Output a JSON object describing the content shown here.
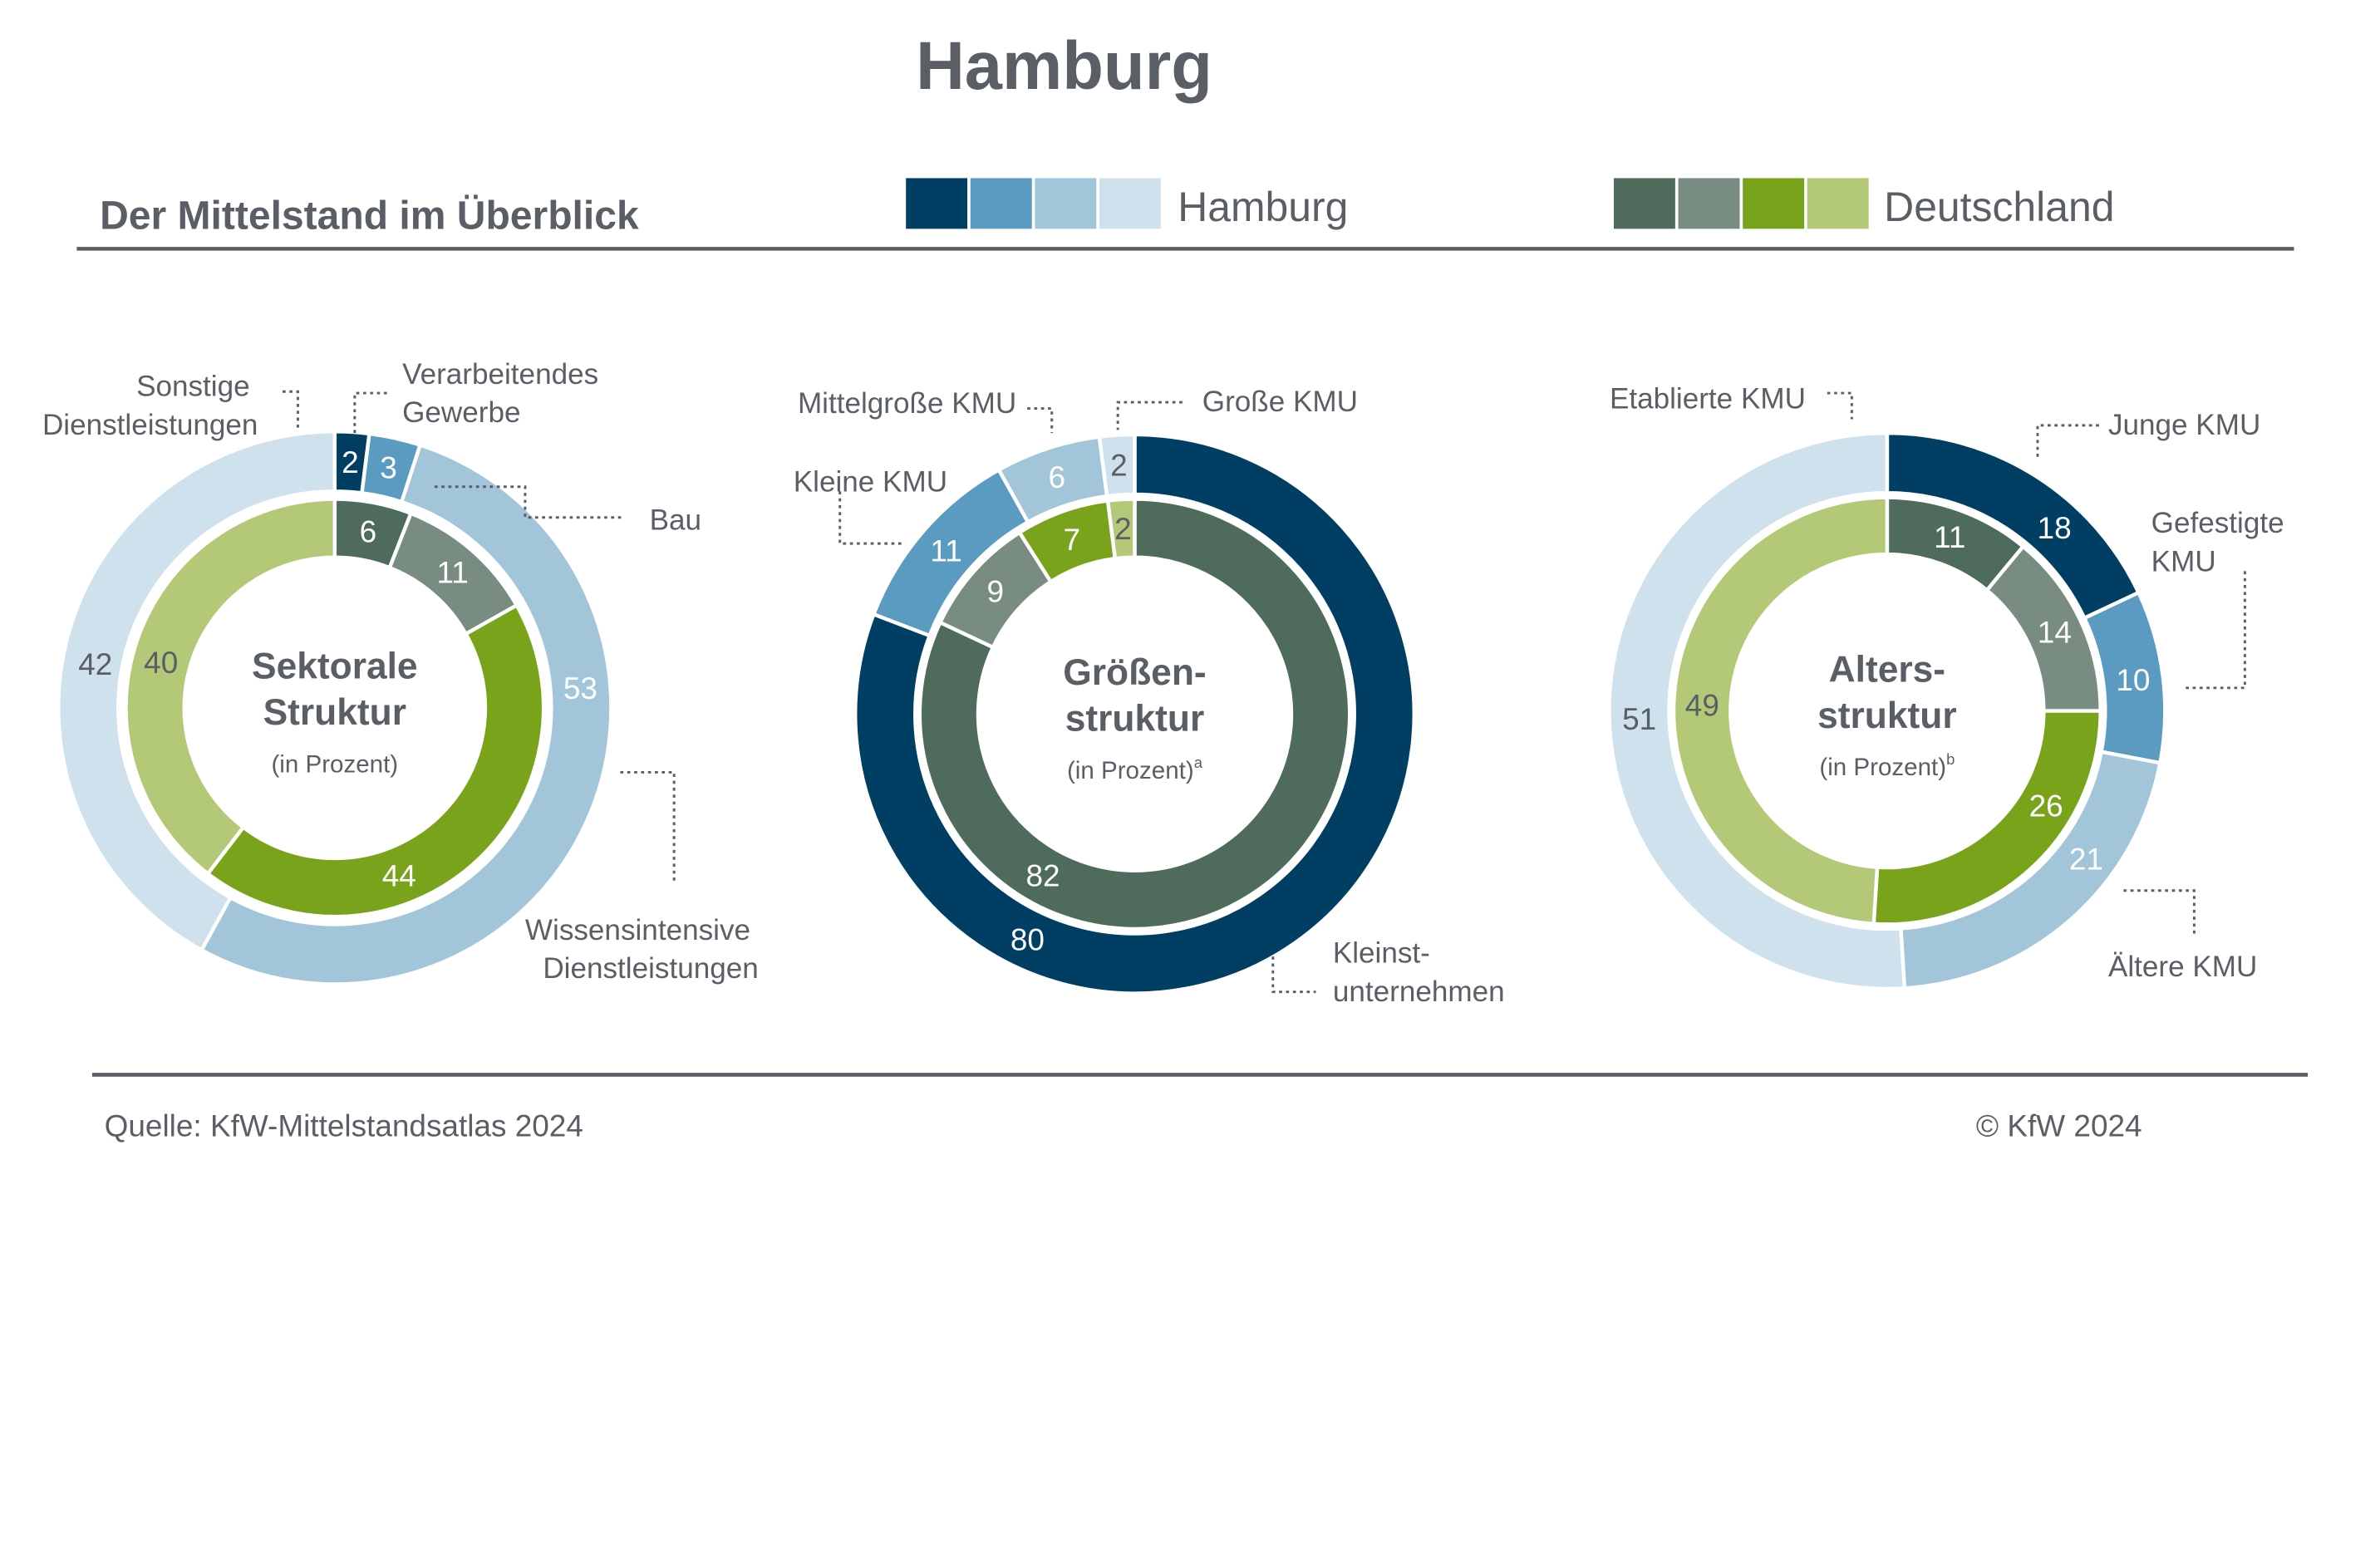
{
  "header": {
    "title": "Hamburg",
    "subtitle": "Der Mittelstand im Überblick"
  },
  "legend": {
    "hamburg_label": "Hamburg",
    "deutschland_label": "Deutschland",
    "hamburg_colors": [
      "#003f63",
      "#5b9bc1",
      "#a3c5da",
      "#cfe1ec"
    ],
    "deutschland_colors": [
      "#4e6b5b",
      "#798c81",
      "#7aa31c",
      "#b4c977"
    ]
  },
  "footer": {
    "source": "Quelle: KfW-Mittelstandsatlas 2024",
    "copyright": "© KfW 2024"
  },
  "chart_data": [
    {
      "type": "donut",
      "center_title": [
        "Sektorale",
        "Struktur"
      ],
      "center_unit": "(in Prozent)",
      "center_sup": "",
      "categories": [
        "Verarbeitendes Gewerbe",
        "Bau",
        "Wissensintensive Dienstleistungen",
        "Sonstige Dienstleistungen"
      ],
      "series": [
        {
          "name": "Hamburg",
          "values": [
            2,
            3,
            53,
            42
          ],
          "colors": [
            "#003f63",
            "#5b9bc1",
            "#a3c5da",
            "#cfe1ec"
          ]
        },
        {
          "name": "Deutschland",
          "values": [
            6,
            11,
            44,
            40
          ],
          "colors": [
            "#4e6b5b",
            "#798c81",
            "#7aa31c",
            "#b4c977"
          ]
        }
      ],
      "callouts": [
        {
          "label": "Sonstige\nDienstleistungen"
        },
        {
          "label": "Verarbeitendes\nGewerbe"
        },
        {
          "label": "Bau"
        },
        {
          "label": "Wissensintensive\nDienstleistungen"
        }
      ]
    },
    {
      "type": "donut",
      "center_title": [
        "Größen-",
        "struktur"
      ],
      "center_unit": "(in Prozent)",
      "center_sup": "a",
      "categories": [
        "Kleinstunternehmen",
        "Kleine KMU",
        "Mittelgroße KMU",
        "Große KMU"
      ],
      "series": [
        {
          "name": "Hamburg",
          "values": [
            80,
            11,
            6,
            2
          ],
          "colors": [
            "#003f63",
            "#5b9bc1",
            "#a3c5da",
            "#cfe1ec"
          ]
        },
        {
          "name": "Deutschland",
          "values": [
            82,
            9,
            7,
            2
          ],
          "colors": [
            "#4e6b5b",
            "#798c81",
            "#7aa31c",
            "#b4c977"
          ]
        }
      ],
      "callouts": [
        {
          "label": "Mittelgroße KMU"
        },
        {
          "label": "Große KMU"
        },
        {
          "label": "Kleine KMU"
        },
        {
          "label": "Kleinst-\nunternehmen"
        }
      ]
    },
    {
      "type": "donut",
      "center_title": [
        "Alters-",
        "struktur"
      ],
      "center_unit": "(in Prozent)",
      "center_sup": "b",
      "categories": [
        "Junge KMU",
        "Gefestigte KMU",
        "Ältere KMU",
        "Etablierte KMU"
      ],
      "series": [
        {
          "name": "Hamburg",
          "values": [
            18,
            10,
            21,
            51
          ],
          "colors": [
            "#003f63",
            "#5b9bc1",
            "#a3c5da",
            "#cfe1ec"
          ]
        },
        {
          "name": "Deutschland",
          "values": [
            11,
            14,
            26,
            49
          ],
          "colors": [
            "#4e6b5b",
            "#798c81",
            "#7aa31c",
            "#b4c977"
          ]
        }
      ],
      "callouts": [
        {
          "label": "Etablierte KMU"
        },
        {
          "label": "Junge KMU"
        },
        {
          "label": "Gefestigte\nKMU"
        },
        {
          "label": "Ältere KMU"
        }
      ]
    }
  ]
}
